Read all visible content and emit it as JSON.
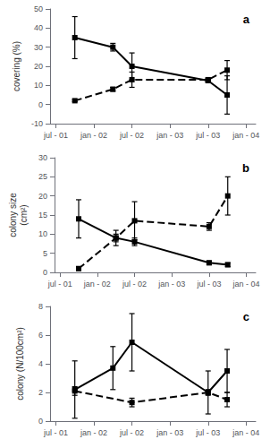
{
  "chart_data": [
    {
      "type": "line",
      "annotations": [
        "a"
      ],
      "ylabel": "covering (%)",
      "xlim": [
        -0.3,
        10.5
      ],
      "xticks": [
        {
          "value": 0,
          "label": "jul - 01"
        },
        {
          "value": 2,
          "label": "jan - 02"
        },
        {
          "value": 4,
          "label": "jul - 02"
        },
        {
          "value": 6,
          "label": "jan - 03"
        },
        {
          "value": 8,
          "label": "jul - 03"
        },
        {
          "value": 10,
          "label": "jan - 04"
        }
      ],
      "ylim": [
        -10,
        50
      ],
      "yticks": [
        -10,
        0,
        10,
        20,
        30,
        40,
        50
      ],
      "grid": false,
      "series": [
        {
          "color": "black",
          "line_style": "solid",
          "marker": "square",
          "x": [
            1,
            3,
            4,
            8,
            9
          ],
          "values": [
            35,
            30,
            20,
            12.5,
            5
          ],
          "errors": [
            11,
            2,
            7,
            1,
            10
          ]
        },
        {
          "color": "black",
          "line_style": "dashed",
          "marker": "square",
          "x": [
            1,
            3,
            4,
            8,
            9
          ],
          "values": [
            2,
            8,
            13,
            13,
            18
          ],
          "errors": [
            0.5,
            1,
            4,
            1,
            5
          ]
        }
      ]
    },
    {
      "type": "line",
      "annotations": [
        "b"
      ],
      "ylabel": "colony size\n(cm²)",
      "xlim": [
        -0.3,
        10.5
      ],
      "xticks": [
        {
          "value": 0,
          "label": "jul - 01"
        },
        {
          "value": 2,
          "label": "jan - 02"
        },
        {
          "value": 4,
          "label": "jul - 02"
        },
        {
          "value": 6,
          "label": "jan - 03"
        },
        {
          "value": 8,
          "label": "jul - 03"
        },
        {
          "value": 10,
          "label": "jan - 04"
        }
      ],
      "ylim": [
        0,
        30
      ],
      "yticks": [
        0,
        5,
        10,
        15,
        20,
        25,
        30
      ],
      "grid": false,
      "series": [
        {
          "color": "black",
          "line_style": "solid",
          "marker": "square",
          "x": [
            1,
            3,
            4,
            8,
            9
          ],
          "values": [
            14,
            9,
            8,
            2.5,
            2
          ],
          "errors": [
            5,
            1,
            1,
            0.5,
            0.5
          ]
        },
        {
          "color": "black",
          "line_style": "dashed",
          "marker": "square",
          "x": [
            1,
            3,
            4,
            8,
            9
          ],
          "values": [
            1,
            9,
            13.5,
            12,
            20
          ],
          "errors": [
            0.5,
            2,
            5,
            1,
            5
          ]
        }
      ]
    },
    {
      "type": "line",
      "annotations": [
        "c"
      ],
      "ylabel": "colony (N/100cm²)",
      "xlim": [
        -0.3,
        10.5
      ],
      "xticks": [
        {
          "value": 0,
          "label": "jul - 01"
        },
        {
          "value": 2,
          "label": "jan - 02"
        },
        {
          "value": 4,
          "label": "jul - 02"
        },
        {
          "value": 6,
          "label": "jan - 03"
        },
        {
          "value": 8,
          "label": "jul - 03"
        },
        {
          "value": 10,
          "label": "jan - 04"
        }
      ],
      "ylim": [
        0,
        8
      ],
      "yticks": [
        0,
        2,
        4,
        6,
        8
      ],
      "grid": false,
      "series": [
        {
          "color": "black",
          "line_style": "solid",
          "marker": "square",
          "x": [
            1,
            3,
            4,
            8,
            9
          ],
          "values": [
            2.2,
            3.7,
            5.5,
            2.0,
            3.5
          ],
          "errors": [
            2.0,
            1.5,
            2.0,
            1.5,
            1.5
          ]
        },
        {
          "color": "black",
          "line_style": "dashed",
          "marker": "square",
          "x": [
            1,
            4,
            8,
            9
          ],
          "values": [
            2.1,
            1.3,
            2.0,
            1.5
          ],
          "errors": [
            0.3,
            0.3,
            0.2,
            0.5
          ]
        }
      ]
    }
  ]
}
